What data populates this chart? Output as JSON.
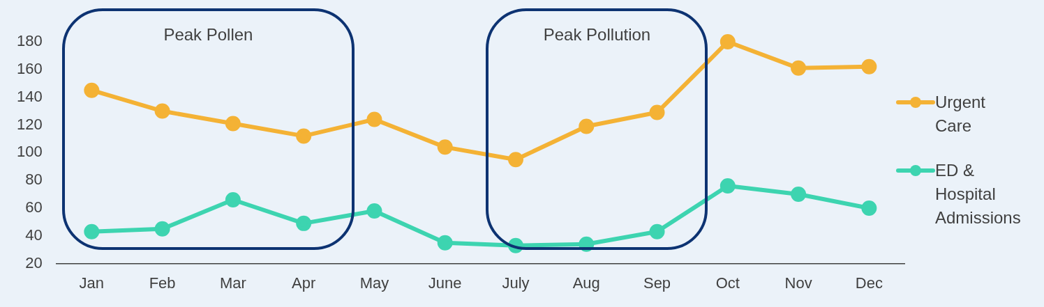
{
  "chart_data": {
    "type": "line",
    "categories": [
      "Jan",
      "Feb",
      "Mar",
      "Apr",
      "May",
      "June",
      "July",
      "Aug",
      "Sep",
      "Oct",
      "Nov",
      "Dec"
    ],
    "series": [
      {
        "name": "Urgent Care",
        "color": "#f4b235",
        "values": [
          145,
          130,
          121,
          112,
          124,
          104,
          95,
          119,
          129,
          180,
          161,
          162
        ]
      },
      {
        "name": "ED & Hospital Admissions",
        "color": "#3dd4b0",
        "values": [
          43,
          45,
          66,
          49,
          58,
          35,
          33,
          34,
          43,
          76,
          70,
          60
        ]
      }
    ],
    "ylim": [
      20,
      180
    ],
    "yticks": [
      20,
      40,
      60,
      80,
      100,
      120,
      140,
      160,
      180
    ],
    "annotations": [
      "Peak Pollen",
      "Peak Pollution"
    ],
    "grid": false,
    "legend": "right",
    "marker": "circle",
    "line_style": "solid"
  }
}
